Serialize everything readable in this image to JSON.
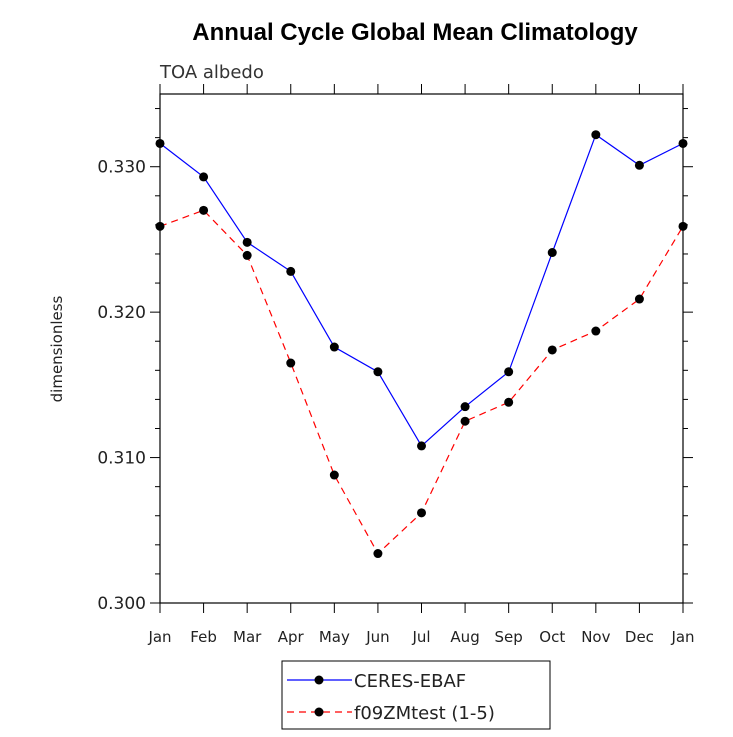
{
  "chart_data": {
    "type": "line",
    "title": "Annual Cycle Global Mean Climatology",
    "subtitle": "TOA albedo",
    "xlabel": "",
    "ylabel": "dimensionless",
    "categories": [
      "Jan",
      "Feb",
      "Mar",
      "Apr",
      "May",
      "Jun",
      "Jul",
      "Aug",
      "Sep",
      "Oct",
      "Nov",
      "Dec",
      "Jan"
    ],
    "ylim": [
      0.3,
      0.335
    ],
    "yticks": [
      0.3,
      0.31,
      0.32,
      0.33
    ],
    "ytick_labels": [
      "0.300",
      "0.310",
      "0.320",
      "0.330"
    ],
    "legend_position": "bottom-center",
    "series": [
      {
        "name": "CERES-EBAF",
        "color": "#0000ff",
        "dash": "solid",
        "values": [
          0.3316,
          0.3293,
          0.3248,
          0.3228,
          0.3176,
          0.3159,
          0.3108,
          0.3135,
          0.3159,
          0.3241,
          0.3322,
          0.3301,
          0.3316
        ]
      },
      {
        "name": "f09ZMtest (1-5)",
        "color": "#ff0000",
        "dash": "dashed",
        "values": [
          0.3259,
          0.327,
          0.3239,
          0.3165,
          0.3088,
          0.3034,
          0.3062,
          0.3125,
          0.3138,
          0.3174,
          0.3187,
          0.3209,
          0.3259
        ]
      }
    ]
  }
}
